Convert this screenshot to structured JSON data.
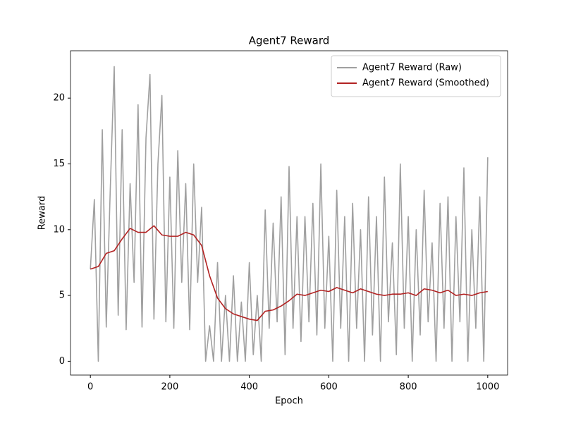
{
  "chart_data": {
    "type": "line",
    "title": "Agent7 Reward",
    "x_label": "Epoch",
    "y_label": "Reward",
    "xlim": [
      -50,
      1050
    ],
    "ylim": [
      -1.05,
      23.6
    ],
    "xticks": [
      0,
      200,
      400,
      600,
      800,
      1000
    ],
    "yticks": [
      0,
      5,
      10,
      15,
      20
    ],
    "grid": false,
    "legend": "upper-right",
    "series": [
      {
        "name": "Agent7 Reward (Raw)",
        "color": "#a0a0a0",
        "x": [
          0,
          10,
          20,
          30,
          40,
          50,
          60,
          70,
          80,
          90,
          100,
          110,
          120,
          130,
          140,
          150,
          160,
          170,
          180,
          190,
          200,
          210,
          220,
          230,
          240,
          250,
          260,
          270,
          280,
          290,
          300,
          310,
          320,
          330,
          340,
          350,
          360,
          370,
          380,
          390,
          400,
          410,
          420,
          430,
          440,
          450,
          460,
          470,
          480,
          490,
          500,
          510,
          520,
          530,
          540,
          550,
          560,
          570,
          580,
          590,
          600,
          610,
          620,
          630,
          640,
          650,
          660,
          670,
          680,
          690,
          700,
          710,
          720,
          730,
          740,
          750,
          760,
          770,
          780,
          790,
          800,
          810,
          820,
          830,
          840,
          850,
          860,
          870,
          880,
          890,
          900,
          910,
          920,
          930,
          940,
          950,
          960,
          970,
          980,
          990,
          1000
        ],
        "values": [
          7,
          12.3,
          0,
          17.6,
          2.6,
          13,
          22.4,
          3.5,
          17.6,
          2.4,
          13.5,
          6,
          19.5,
          2.6,
          17,
          21.8,
          3.2,
          15,
          20.2,
          3,
          14,
          2.5,
          16,
          6,
          13.5,
          2.4,
          15,
          6,
          11.7,
          0,
          2.7,
          0,
          7.5,
          0,
          5,
          0,
          6.5,
          0,
          4.5,
          0,
          7.5,
          0.5,
          5,
          0,
          11.5,
          2.5,
          10.5,
          3,
          12.5,
          0.5,
          14.8,
          2.5,
          11,
          1.5,
          11,
          3,
          12,
          2,
          15,
          2.5,
          9.5,
          0,
          13,
          2.5,
          11,
          0,
          12,
          2.5,
          10,
          0,
          12.5,
          2,
          11,
          0,
          14,
          3,
          9,
          0.5,
          15,
          2.5,
          11,
          0,
          10,
          2,
          13,
          3,
          9,
          0,
          12,
          2.5,
          12.5,
          0,
          11,
          3,
          14.7,
          0,
          10,
          2.5,
          12.5,
          0,
          15.5
        ]
      },
      {
        "name": "Agent7 Reward (Smoothed)",
        "color": "#b22222",
        "x": [
          0,
          20,
          40,
          60,
          80,
          100,
          120,
          140,
          160,
          180,
          200,
          220,
          240,
          260,
          280,
          300,
          320,
          340,
          360,
          380,
          400,
          420,
          440,
          460,
          480,
          500,
          520,
          540,
          560,
          580,
          600,
          620,
          640,
          660,
          680,
          700,
          720,
          740,
          760,
          780,
          800,
          820,
          840,
          860,
          880,
          900,
          920,
          940,
          960,
          980,
          1000
        ],
        "values": [
          7,
          7.2,
          8.2,
          8.4,
          9.3,
          10.1,
          9.8,
          9.8,
          10.3,
          9.6,
          9.5,
          9.5,
          9.8,
          9.6,
          8.8,
          6.5,
          4.8,
          4,
          3.6,
          3.4,
          3.2,
          3.1,
          3.8,
          3.9,
          4.2,
          4.6,
          5.1,
          5,
          5.2,
          5.4,
          5.3,
          5.6,
          5.4,
          5.2,
          5.5,
          5.3,
          5.1,
          5,
          5.1,
          5.1,
          5.2,
          5,
          5.5,
          5.4,
          5.2,
          5.4,
          5,
          5.1,
          5,
          5.2,
          5.3
        ]
      }
    ]
  }
}
